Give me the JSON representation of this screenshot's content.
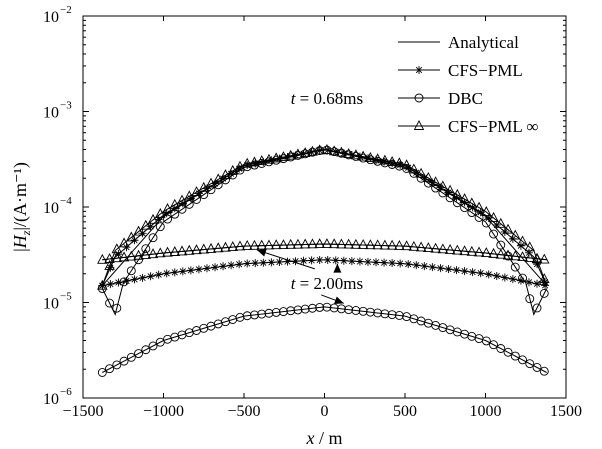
{
  "chart_data": {
    "type": "line",
    "title": "",
    "xlabel": "x / m",
    "ylabel": "|Hz|/(A·m⁻¹)",
    "xlim": [
      -1500,
      1500
    ],
    "ylim": [
      1e-06,
      0.01
    ],
    "yscale": "log",
    "grid": false,
    "legend_position": "top-right",
    "xticks": [
      -1500,
      -1000,
      -500,
      0,
      500,
      1000,
      1500
    ],
    "xtick_labels": [
      "−1500",
      "−1000",
      "−500",
      "0",
      "500",
      "1000",
      "1500"
    ],
    "yticks": [
      1e-06,
      1e-05,
      0.0001,
      0.001,
      0.01
    ],
    "ytick_labels": [
      {
        "base": "10",
        "exp": "−6"
      },
      {
        "base": "10",
        "exp": "−5"
      },
      {
        "base": "10",
        "exp": "−4"
      },
      {
        "base": "10",
        "exp": "−3"
      },
      {
        "base": "10",
        "exp": "−2"
      }
    ],
    "legend": [
      {
        "label": "Analytical",
        "marker": "none"
      },
      {
        "label": "CFS−PML",
        "marker": "star"
      },
      {
        "label": "DBC",
        "marker": "circle"
      },
      {
        "label": "CFS−PML ∞",
        "marker": "triangle"
      }
    ],
    "annotations": [
      {
        "text": "t = 0.68ms",
        "x": -210,
        "y": 0.0012
      },
      {
        "text": "t = 2.00ms",
        "x": -210,
        "y": 1.38e-05
      }
    ],
    "series": [
      {
        "name": "Analytical",
        "group": "t = 0.68ms",
        "marker": "none",
        "x": [
          -1380,
          -1000,
          -500,
          0,
          500,
          1000,
          1380
        ],
        "y": [
          1.5e-05,
          8e-05,
          0.00027,
          0.0004,
          0.00027,
          8e-05,
          1.5e-05
        ]
      },
      {
        "name": "CFS−PML",
        "group": "t = 0.68ms",
        "marker": "star",
        "x": [
          -1380,
          -1300,
          -1000,
          -500,
          0,
          500,
          1000,
          1300,
          1380
        ],
        "y": [
          1.5e-05,
          3e-05,
          8.2e-05,
          0.00027,
          0.0004,
          0.00027,
          8.2e-05,
          3e-05,
          1.5e-05
        ]
      },
      {
        "name": "DBC",
        "group": "t = 0.68ms",
        "marker": "circle",
        "x": [
          -1380,
          -1300,
          -1250,
          -1000,
          -500,
          0,
          500,
          1000,
          1250,
          1300,
          1380
        ],
        "y": [
          1.4e-05,
          7.5e-06,
          1.6e-05,
          7e-05,
          0.00026,
          0.0004,
          0.00026,
          7e-05,
          1.6e-05,
          7.5e-06,
          1.4e-05
        ]
      },
      {
        "name": "CFS−PML ∞",
        "group": "t = 0.68ms",
        "marker": "triangle",
        "x": [
          -1380,
          -1300,
          -1000,
          -500,
          0,
          500,
          1000,
          1300,
          1380
        ],
        "y": [
          1.5e-05,
          3.5e-05,
          9e-05,
          0.00028,
          0.0004,
          0.00028,
          9e-05,
          3.5e-05,
          1.5e-05
        ]
      },
      {
        "name": "Analytical",
        "group": "t = 2.00ms",
        "marker": "none",
        "x": [
          -1380,
          -1000,
          -500,
          0,
          500,
          1000,
          1380
        ],
        "y": [
          2.8e-05,
          3.3e-05,
          3.9e-05,
          4.1e-05,
          3.9e-05,
          3.3e-05,
          2.8e-05
        ]
      },
      {
        "name": "CFS−PML ∞",
        "group": "t = 2.00ms",
        "marker": "triangle",
        "x": [
          -1380,
          -1000,
          -500,
          0,
          500,
          1000,
          1380
        ],
        "y": [
          2.8e-05,
          3.3e-05,
          3.9e-05,
          4.1e-05,
          3.9e-05,
          3.3e-05,
          2.8e-05
        ]
      },
      {
        "name": "CFS−PML",
        "group": "t = 2.00ms",
        "marker": "star",
        "x": [
          -1380,
          -1000,
          -500,
          0,
          500,
          1000,
          1380
        ],
        "y": [
          1.5e-05,
          2e-05,
          2.55e-05,
          2.8e-05,
          2.55e-05,
          2e-05,
          1.5e-05
        ]
      },
      {
        "name": "DBC",
        "group": "t = 2.00ms",
        "marker": "circle",
        "x": [
          -1380,
          -1000,
          -500,
          0,
          500,
          1000,
          1380
        ],
        "y": [
          1.85e-06,
          4e-06,
          7.2e-06,
          9e-06,
          7.2e-06,
          4e-06,
          1.85e-06
        ]
      }
    ]
  }
}
